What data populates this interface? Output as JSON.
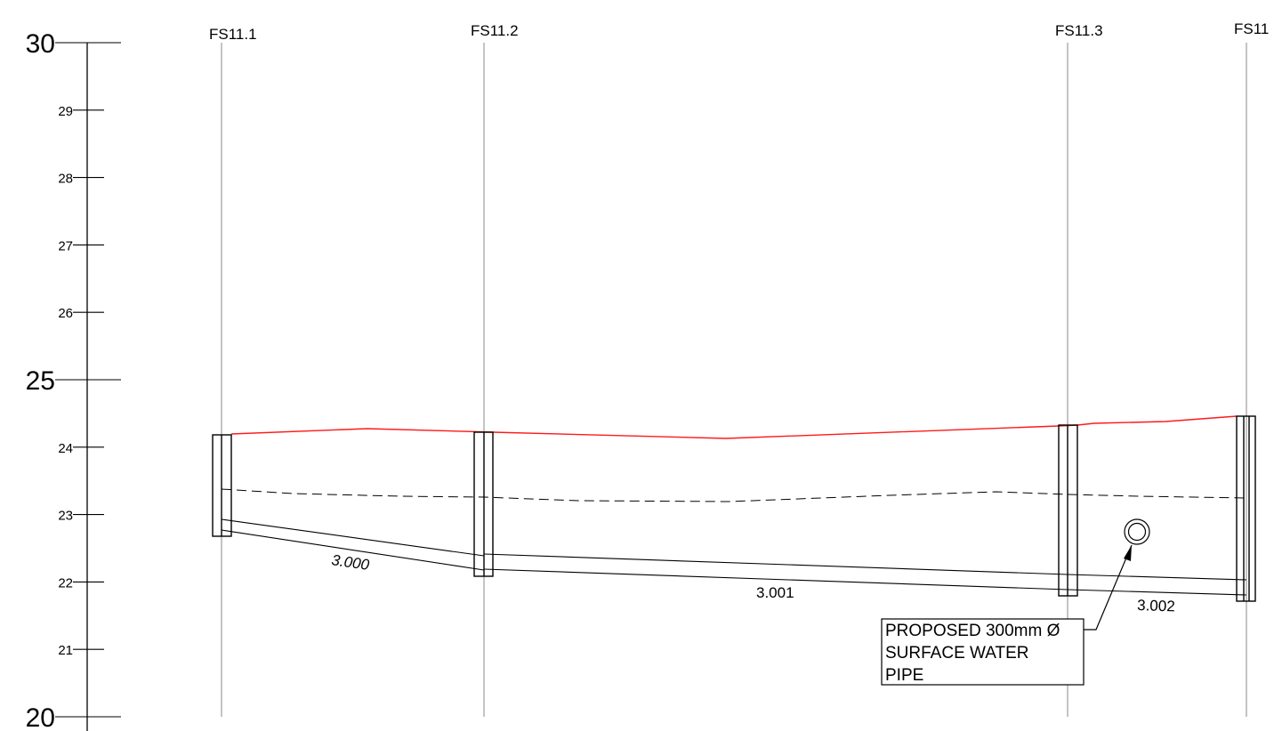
{
  "elevation_axis": {
    "min": 20,
    "max": 30,
    "ticks": [
      {
        "value": 30,
        "label": "30",
        "major": true
      },
      {
        "value": 29,
        "label": "29",
        "major": false
      },
      {
        "value": 28,
        "label": "28",
        "major": false
      },
      {
        "value": 27,
        "label": "27",
        "major": false
      },
      {
        "value": 26,
        "label": "26",
        "major": false
      },
      {
        "value": 25,
        "label": "25",
        "major": true
      },
      {
        "value": 24,
        "label": "24",
        "major": false
      },
      {
        "value": 23,
        "label": "23",
        "major": false
      },
      {
        "value": 22,
        "label": "22",
        "major": false
      },
      {
        "value": 21,
        "label": "21",
        "major": false
      },
      {
        "value": 20,
        "label": "20",
        "major": true
      }
    ]
  },
  "stations": [
    {
      "id": "FS11.1"
    },
    {
      "id": "FS11.2"
    },
    {
      "id": "FS11.3"
    },
    {
      "id": "FS11"
    }
  ],
  "pipes": [
    {
      "label": "3.000"
    },
    {
      "label": "3.001"
    },
    {
      "label": "3.002"
    }
  ],
  "note": {
    "lines": [
      "PROPOSED 300mm Ø",
      "SURFACE WATER",
      "PIPE"
    ]
  },
  "colors": {
    "ground_line": "#ff1a1a",
    "station_line": "#8a8a8a",
    "ink": "#000000"
  }
}
